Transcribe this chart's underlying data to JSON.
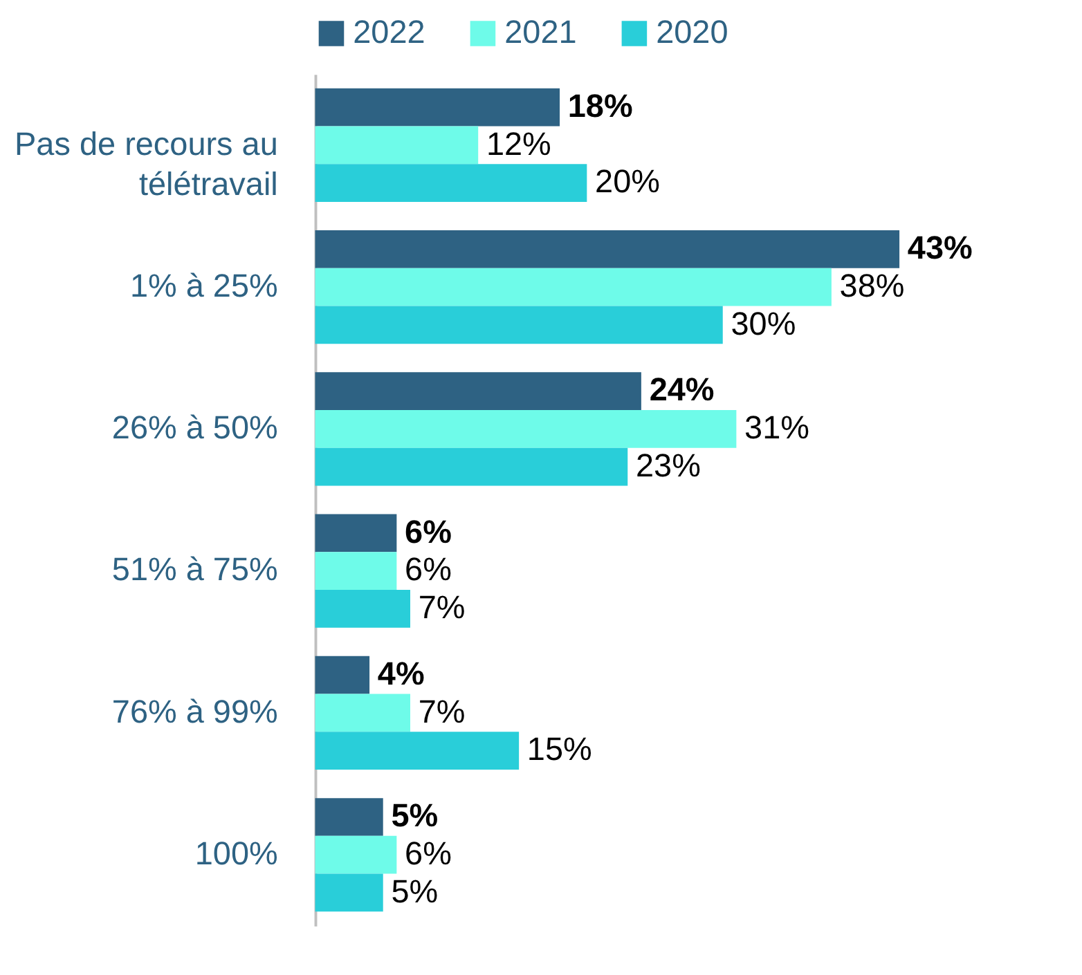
{
  "chart_data": {
    "type": "bar",
    "orientation": "horizontal",
    "legend": "top",
    "categories": [
      "Pas de recours au télétravail",
      "1% à 25%",
      "26% à 50%",
      "51% à 75%",
      "76% à 99%",
      "100%"
    ],
    "series": [
      {
        "name": "2022",
        "color": "#2e6283",
        "values": [
          18,
          43,
          24,
          6,
          4,
          5
        ],
        "value_labels": [
          "18%",
          "43%",
          "24%",
          "6%",
          "4%",
          "5%"
        ]
      },
      {
        "name": "2021",
        "color": "#6efbe9",
        "values": [
          12,
          38,
          31,
          6,
          7,
          6
        ],
        "value_labels": [
          "12%",
          "38%",
          "31%",
          "6%",
          "7%",
          "6%"
        ]
      },
      {
        "name": "2020",
        "color": "#29ced9",
        "values": [
          20,
          30,
          23,
          7,
          15,
          5
        ],
        "value_labels": [
          "20%",
          "30%",
          "23%",
          "7%",
          "15%",
          "5%"
        ]
      }
    ]
  }
}
